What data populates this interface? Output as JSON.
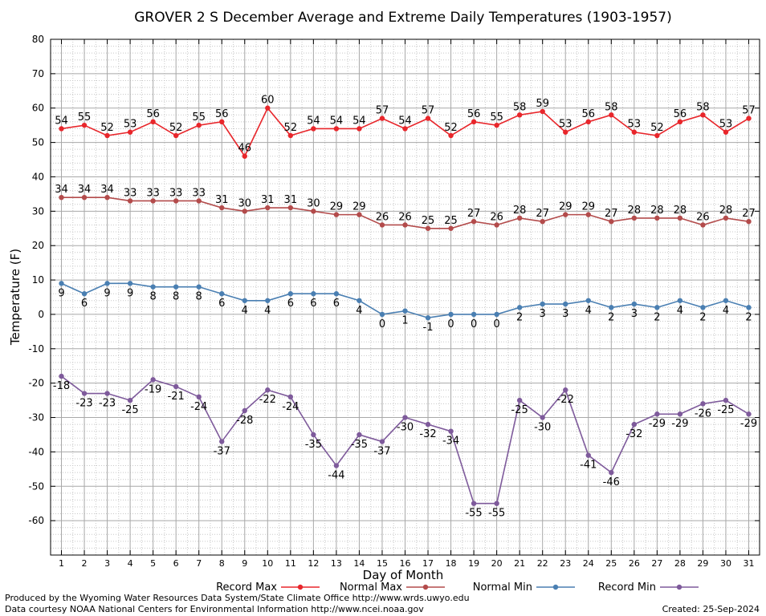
{
  "chart_data": {
    "type": "line",
    "title": "GROVER 2 S December Average and Extreme Daily Temperatures (1903-1957)",
    "xlabel": "Day of Month",
    "ylabel": "Temperature (F)",
    "ylim": [
      -70,
      80
    ],
    "yticks": [
      80,
      70,
      60,
      50,
      40,
      30,
      20,
      10,
      0,
      -10,
      -20,
      -30,
      -40,
      -50,
      -60
    ],
    "x": [
      1,
      2,
      3,
      4,
      5,
      6,
      7,
      8,
      9,
      10,
      11,
      12,
      13,
      14,
      15,
      16,
      17,
      18,
      19,
      20,
      21,
      22,
      23,
      24,
      25,
      26,
      27,
      28,
      29,
      30,
      31
    ],
    "grid": true,
    "legend_position": "bottom",
    "series": [
      {
        "name": "Record Max",
        "color": "#e8262b",
        "label_position": "above",
        "values": [
          54,
          55,
          52,
          53,
          56,
          52,
          55,
          56,
          46,
          60,
          52,
          54,
          54,
          54,
          57,
          54,
          57,
          52,
          56,
          55,
          58,
          59,
          53,
          56,
          58,
          53,
          52,
          56,
          58,
          53,
          57
        ]
      },
      {
        "name": "Normal Max",
        "color": "#b34b4b",
        "label_position": "above",
        "values": [
          34,
          34,
          34,
          33,
          33,
          33,
          33,
          31,
          30,
          31,
          31,
          30,
          29,
          29,
          26,
          26,
          25,
          25,
          27,
          26,
          28,
          27,
          29,
          29,
          27,
          28,
          28,
          28,
          26,
          28,
          27
        ]
      },
      {
        "name": "Normal Min",
        "color": "#4a7fb2",
        "label_position": "below",
        "values": [
          9,
          6,
          9,
          9,
          8,
          8,
          8,
          6,
          4,
          4,
          6,
          6,
          6,
          4,
          0,
          1,
          -1,
          0,
          0,
          0,
          2,
          3,
          3,
          4,
          2,
          3,
          2,
          4,
          2,
          4,
          2
        ]
      },
      {
        "name": "Record Min",
        "color": "#7e5a9b",
        "label_position": "below",
        "values": [
          -18,
          -23,
          -23,
          -25,
          -19,
          -21,
          -24,
          -37,
          -28,
          -22,
          -24,
          -35,
          -44,
          -35,
          -37,
          -30,
          -32,
          -34,
          -55,
          -55,
          -25,
          -30,
          -22,
          -41,
          -46,
          -32,
          -29,
          -29,
          -26,
          -25,
          -29
        ]
      }
    ]
  },
  "footer": {
    "credit_line_1": "Produced by the Wyoming Water Resources Data System/State Climate Office http://www.wrds.uwyo.edu",
    "credit_line_2": "Data courtesy NOAA National Centers for Environmental Information http://www.ncei.noaa.gov",
    "created": "Created:  25-Sep-2024"
  }
}
